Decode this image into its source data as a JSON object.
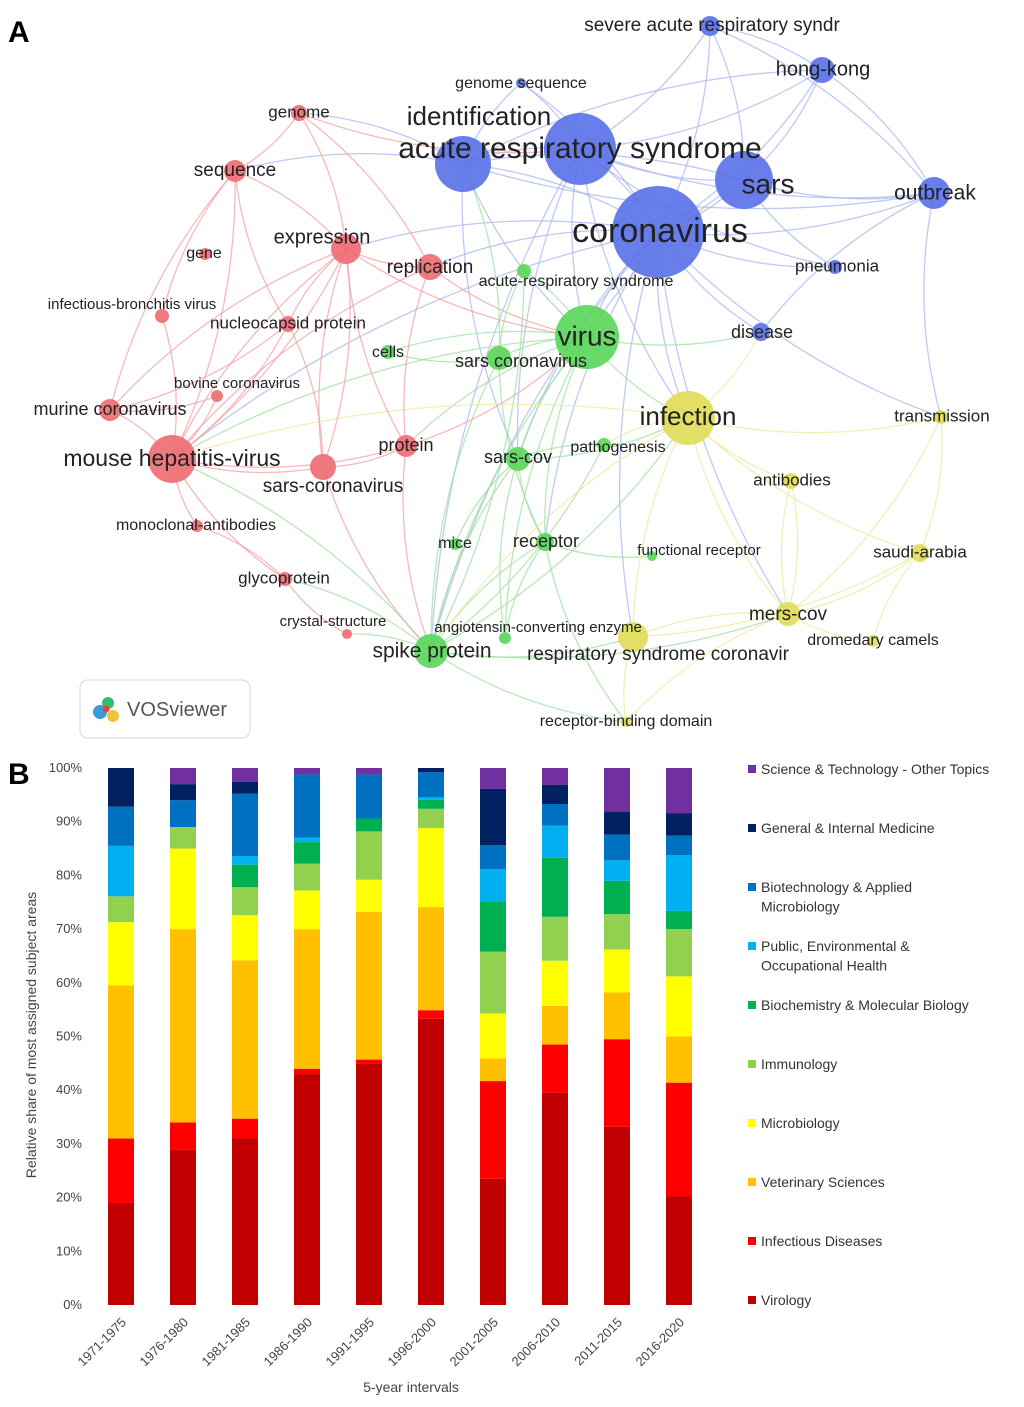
{
  "panel_a": {
    "letter": "A",
    "badge_text": "VOSviewer",
    "cluster_colors": {
      "red": "#ee6e73",
      "green": "#5cd65c",
      "blue": "#5b73e8",
      "yellow": "#e0dc5a"
    },
    "edge_colors": {
      "red": "#f2a1a5",
      "green": "#9fe09f",
      "blue": "#a9b7f0",
      "yellow": "#ecea9c"
    },
    "nodes": [
      {
        "id": "coronavirus",
        "label": "coronavirus",
        "cluster": "blue",
        "weight": 46,
        "fs": 34
      },
      {
        "id": "ars",
        "label": "acute respiratory syndrome",
        "cluster": "blue",
        "weight": 36,
        "fs": 30
      },
      {
        "id": "sars",
        "label": "sars",
        "cluster": "blue",
        "weight": 29,
        "fs": 28
      },
      {
        "id": "identification",
        "label": "identification",
        "cluster": "blue",
        "weight": 28,
        "fs": 26
      },
      {
        "id": "outbreak",
        "label": "outbreak",
        "cluster": "blue",
        "weight": 16,
        "fs": 21
      },
      {
        "id": "hongkong",
        "label": "hong-kong",
        "cluster": "blue",
        "weight": 13,
        "fs": 20
      },
      {
        "id": "sars_syndr",
        "label": "severe acute respiratory syndr",
        "cluster": "blue",
        "weight": 10,
        "fs": 19
      },
      {
        "id": "genome_seq",
        "label": "genome sequence",
        "cluster": "blue",
        "weight": 5,
        "fs": 16
      },
      {
        "id": "pneumonia",
        "label": "pneumonia",
        "cluster": "blue",
        "weight": 7,
        "fs": 17
      },
      {
        "id": "disease",
        "label": "disease",
        "cluster": "blue",
        "weight": 9,
        "fs": 18
      },
      {
        "id": "virus",
        "label": "virus",
        "cluster": "green",
        "weight": 32,
        "fs": 28
      },
      {
        "id": "sars_cov_v",
        "label": "sars coronavirus",
        "cluster": "green",
        "weight": 12,
        "fs": 18
      },
      {
        "id": "cells",
        "label": "cells",
        "cluster": "green",
        "weight": 7,
        "fs": 16
      },
      {
        "id": "acute_rs",
        "label": "acute-respiratory syndrome",
        "cluster": "green",
        "weight": 7,
        "fs": 16
      },
      {
        "id": "sars_cov",
        "label": "sars-cov",
        "cluster": "green",
        "weight": 12,
        "fs": 18
      },
      {
        "id": "pathogenesis",
        "label": "pathogenesis",
        "cluster": "green",
        "weight": 7,
        "fs": 16
      },
      {
        "id": "mice",
        "label": "mice",
        "cluster": "green",
        "weight": 6,
        "fs": 16
      },
      {
        "id": "receptor",
        "label": "receptor",
        "cluster": "green",
        "weight": 9,
        "fs": 18
      },
      {
        "id": "func_receptor",
        "label": "functional receptor",
        "cluster": "green",
        "weight": 5,
        "fs": 15
      },
      {
        "id": "spike",
        "label": "spike protein",
        "cluster": "green",
        "weight": 17,
        "fs": 21
      },
      {
        "id": "ace",
        "label": "angiotensin-converting enzyme",
        "cluster": "green",
        "weight": 6,
        "fs": 15
      },
      {
        "id": "expression",
        "label": "expression",
        "cluster": "red",
        "weight": 15,
        "fs": 20
      },
      {
        "id": "replication",
        "label": "replication",
        "cluster": "red",
        "weight": 13,
        "fs": 19
      },
      {
        "id": "genome",
        "label": "genome",
        "cluster": "red",
        "weight": 8,
        "fs": 17
      },
      {
        "id": "sequence",
        "label": "sequence",
        "cluster": "red",
        "weight": 11,
        "fs": 19
      },
      {
        "id": "gene",
        "label": "gene",
        "cluster": "red",
        "weight": 6,
        "fs": 16
      },
      {
        "id": "ibv",
        "label": "infectious-bronchitis virus",
        "cluster": "red",
        "weight": 7,
        "fs": 15
      },
      {
        "id": "nucleocapsid",
        "label": "nucleocapsid protein",
        "cluster": "red",
        "weight": 8,
        "fs": 17
      },
      {
        "id": "bovine",
        "label": "bovine coronavirus",
        "cluster": "red",
        "weight": 6,
        "fs": 15
      },
      {
        "id": "murine",
        "label": "murine coronavirus",
        "cluster": "red",
        "weight": 11,
        "fs": 18
      },
      {
        "id": "mhv",
        "label": "mouse hepatitis-virus",
        "cluster": "red",
        "weight": 24,
        "fs": 23
      },
      {
        "id": "protein",
        "label": "protein",
        "cluster": "red",
        "weight": 11,
        "fs": 18
      },
      {
        "id": "sars_corona",
        "label": "sars-coronavirus",
        "cluster": "red",
        "weight": 13,
        "fs": 19
      },
      {
        "id": "monoclonal",
        "label": "monoclonal-antibodies",
        "cluster": "red",
        "weight": 6,
        "fs": 16
      },
      {
        "id": "glycoprotein",
        "label": "glycoprotein",
        "cluster": "red",
        "weight": 7,
        "fs": 17
      },
      {
        "id": "crystal",
        "label": "crystal-structure",
        "cluster": "red",
        "weight": 5,
        "fs": 15
      },
      {
        "id": "infection",
        "label": "infection",
        "cluster": "yellow",
        "weight": 27,
        "fs": 26
      },
      {
        "id": "transmission",
        "label": "transmission",
        "cluster": "yellow",
        "weight": 7,
        "fs": 17
      },
      {
        "id": "antibodies",
        "label": "antibodies",
        "cluster": "yellow",
        "weight": 8,
        "fs": 17
      },
      {
        "id": "saudi",
        "label": "saudi-arabia",
        "cluster": "yellow",
        "weight": 9,
        "fs": 17
      },
      {
        "id": "mers",
        "label": "mers-cov",
        "cluster": "yellow",
        "weight": 12,
        "fs": 19
      },
      {
        "id": "camels",
        "label": "dromedary camels",
        "cluster": "yellow",
        "weight": 6,
        "fs": 16
      },
      {
        "id": "rsc",
        "label": "respiratory syndrome coronavir",
        "cluster": "yellow",
        "weight": 15,
        "fs": 19
      },
      {
        "id": "rbd",
        "label": "receptor-binding domain",
        "cluster": "yellow",
        "weight": 5,
        "fs": 16
      }
    ],
    "edges": [
      [
        "coronavirus",
        "ars"
      ],
      [
        "coronavirus",
        "sars"
      ],
      [
        "coronavirus",
        "identification"
      ],
      [
        "coronavirus",
        "outbreak"
      ],
      [
        "coronavirus",
        "hongkong"
      ],
      [
        "coronavirus",
        "sars_syndr"
      ],
      [
        "coronavirus",
        "pneumonia"
      ],
      [
        "coronavirus",
        "disease"
      ],
      [
        "coronavirus",
        "virus"
      ],
      [
        "coronavirus",
        "infection"
      ],
      [
        "coronavirus",
        "expression"
      ],
      [
        "coronavirus",
        "mhv"
      ],
      [
        "coronavirus",
        "spike"
      ],
      [
        "coronavirus",
        "replication"
      ],
      [
        "coronavirus",
        "sars_cov"
      ],
      [
        "coronavirus",
        "receptor"
      ],
      [
        "coronavirus",
        "transmission"
      ],
      [
        "coronavirus",
        "mers"
      ],
      [
        "coronavirus",
        "genome_seq"
      ],
      [
        "coronavirus",
        "rsc"
      ],
      [
        "ars",
        "sars"
      ],
      [
        "ars",
        "identification"
      ],
      [
        "ars",
        "outbreak"
      ],
      [
        "ars",
        "hongkong"
      ],
      [
        "ars",
        "sars_syndr"
      ],
      [
        "ars",
        "virus"
      ],
      [
        "ars",
        "sars_cov"
      ],
      [
        "ars",
        "pneumonia"
      ],
      [
        "ars",
        "spike"
      ],
      [
        "ars",
        "infection"
      ],
      [
        "ars",
        "genome_seq"
      ],
      [
        "sars",
        "outbreak"
      ],
      [
        "sars",
        "hongkong"
      ],
      [
        "sars",
        "sars_syndr"
      ],
      [
        "sars",
        "virus"
      ],
      [
        "sars",
        "pneumonia"
      ],
      [
        "sars",
        "identification"
      ],
      [
        "identification",
        "virus"
      ],
      [
        "identification",
        "sequence"
      ],
      [
        "identification",
        "genome"
      ],
      [
        "identification",
        "sars_cov"
      ],
      [
        "identification",
        "outbreak"
      ],
      [
        "outbreak",
        "hongkong"
      ],
      [
        "outbreak",
        "sars_syndr"
      ],
      [
        "outbreak",
        "transmission"
      ],
      [
        "outbreak",
        "disease"
      ],
      [
        "hongkong",
        "sars_syndr"
      ],
      [
        "hongkong",
        "identification"
      ],
      [
        "virus",
        "sars_cov_v"
      ],
      [
        "virus",
        "infection"
      ],
      [
        "virus",
        "spike"
      ],
      [
        "virus",
        "receptor"
      ],
      [
        "virus",
        "sars_cov"
      ],
      [
        "virus",
        "cells"
      ],
      [
        "virus",
        "acute_rs"
      ],
      [
        "virus",
        "mhv"
      ],
      [
        "virus",
        "protein"
      ],
      [
        "virus",
        "ace"
      ],
      [
        "virus",
        "disease"
      ],
      [
        "sars_cov_v",
        "spike"
      ],
      [
        "sars_cov_v",
        "receptor"
      ],
      [
        "sars_cov_v",
        "identification"
      ],
      [
        "sars_cov",
        "spike"
      ],
      [
        "sars_cov",
        "receptor"
      ],
      [
        "sars_cov",
        "ace"
      ],
      [
        "sars_cov",
        "mice"
      ],
      [
        "sars_cov",
        "infection"
      ],
      [
        "receptor",
        "spike"
      ],
      [
        "receptor",
        "ace"
      ],
      [
        "receptor",
        "func_receptor"
      ],
      [
        "receptor",
        "rbd"
      ],
      [
        "spike",
        "rsc"
      ],
      [
        "spike",
        "mers"
      ],
      [
        "spike",
        "rbd"
      ],
      [
        "spike",
        "mhv"
      ],
      [
        "spike",
        "glycoprotein"
      ],
      [
        "spike",
        "crystal"
      ],
      [
        "spike",
        "pathogenesis"
      ],
      [
        "spike",
        "acute_rs"
      ],
      [
        "spike",
        "infection"
      ],
      [
        "infection",
        "mers"
      ],
      [
        "infection",
        "antibodies"
      ],
      [
        "infection",
        "saudi"
      ],
      [
        "infection",
        "rsc"
      ],
      [
        "infection",
        "disease"
      ],
      [
        "infection",
        "pathogenesis"
      ],
      [
        "infection",
        "transmission"
      ],
      [
        "infection",
        "mhv"
      ],
      [
        "infection",
        "spike"
      ],
      [
        "mers",
        "saudi"
      ],
      [
        "mers",
        "camels"
      ],
      [
        "mers",
        "rsc"
      ],
      [
        "mers",
        "antibodies"
      ],
      [
        "mers",
        "transmission"
      ],
      [
        "mers",
        "rbd"
      ],
      [
        "saudi",
        "camels"
      ],
      [
        "saudi",
        "transmission"
      ],
      [
        "rsc",
        "rbd"
      ],
      [
        "rsc",
        "saudi"
      ],
      [
        "expression",
        "replication"
      ],
      [
        "expression",
        "mhv"
      ],
      [
        "expression",
        "sequence"
      ],
      [
        "expression",
        "genome"
      ],
      [
        "expression",
        "protein"
      ],
      [
        "expression",
        "nucleocapsid"
      ],
      [
        "expression",
        "murine"
      ],
      [
        "expression",
        "sars_corona"
      ],
      [
        "expression",
        "virus"
      ],
      [
        "replication",
        "mhv"
      ],
      [
        "replication",
        "protein"
      ],
      [
        "replication",
        "virus"
      ],
      [
        "replication",
        "genome"
      ],
      [
        "mhv",
        "murine"
      ],
      [
        "mhv",
        "sars_corona"
      ],
      [
        "mhv",
        "monoclonal"
      ],
      [
        "mhv",
        "glycoprotein"
      ],
      [
        "mhv",
        "bovine"
      ],
      [
        "mhv",
        "nucleocapsid"
      ],
      [
        "mhv",
        "sequence"
      ],
      [
        "mhv",
        "ibv"
      ],
      [
        "mhv",
        "protein"
      ],
      [
        "mhv",
        "expression"
      ],
      [
        "sequence",
        "genome"
      ],
      [
        "sequence",
        "ibv"
      ],
      [
        "sequence",
        "murine"
      ],
      [
        "sequence",
        "nucleocapsid"
      ],
      [
        "sars_corona",
        "protein"
      ],
      [
        "sars_corona",
        "nucleocapsid"
      ],
      [
        "sars_corona",
        "spike"
      ],
      [
        "sars_corona",
        "expression"
      ],
      [
        "glycoprotein",
        "crystal"
      ],
      [
        "glycoprotein",
        "monoclonal"
      ],
      [
        "murine",
        "bovine"
      ],
      [
        "murine",
        "nucleocapsid"
      ],
      [
        "protein",
        "spike"
      ],
      [
        "protein",
        "virus"
      ],
      [
        "cells",
        "sars_cov_v"
      ],
      [
        "acute_rs",
        "sars_cov_v"
      ],
      [
        "pathogenesis",
        "sars_cov"
      ],
      [
        "genome",
        "ars"
      ],
      [
        "genome_seq",
        "identification"
      ],
      [
        "antibodies",
        "mers"
      ]
    ]
  },
  "chart_data": {
    "type": "bar",
    "stacked": true,
    "panel_letter": "B",
    "xlabel": "5-year intervals",
    "ylabel": "Relative share of most assigned subject areas",
    "ylim": [
      0,
      100
    ],
    "y_ticks": [
      "0%",
      "10%",
      "20%",
      "30%",
      "40%",
      "50%",
      "60%",
      "70%",
      "80%",
      "90%",
      "100%"
    ],
    "categories": [
      "1971-1975",
      "1976-1980",
      "1981-1985",
      "1986-1990",
      "1991-1995",
      "1996-2000",
      "2001-2005",
      "2006-2010",
      "2011-2015",
      "2016-2020"
    ],
    "legend_position": "right",
    "series": [
      {
        "name": "Virology",
        "color": "#c00000",
        "values": [
          19,
          29,
          31,
          43,
          45,
          53.3,
          23.5,
          39.5,
          33.2,
          20.2
        ]
      },
      {
        "name": "Infectious Diseases",
        "color": "#ff0000",
        "values": [
          12,
          5,
          3.7,
          1,
          0.7,
          1.6,
          18.2,
          9,
          16.3,
          21.2
        ]
      },
      {
        "name": "Veterinary Sciences",
        "color": "#ffc000",
        "values": [
          28.5,
          36,
          29.5,
          26,
          27.5,
          19.2,
          4.2,
          7.2,
          8.7,
          8.6
        ]
      },
      {
        "name": "Microbiology",
        "color": "#ffff00",
        "values": [
          11.8,
          15,
          8.4,
          7.2,
          6,
          14.7,
          8.4,
          8.4,
          8,
          11.2
        ]
      },
      {
        "name": "Immunology",
        "color": "#92d050",
        "values": [
          4.8,
          4,
          5.2,
          5,
          9,
          3.6,
          11.5,
          8.2,
          6.6,
          8.8
        ]
      },
      {
        "name": "Biochemistry & Molecular Biology",
        "color": "#00b050",
        "values": [
          0,
          0,
          4.2,
          4,
          2.4,
          1.7,
          9.4,
          11,
          6.2,
          3.4
        ]
      },
      {
        "name": "Public, Environmental & Occupational Health",
        "color": "#00b0f0",
        "values": [
          9.4,
          0,
          1.6,
          0.8,
          0,
          0.5,
          6,
          6,
          3.8,
          10.4
        ]
      },
      {
        "name": "Biotechnology & Applied Microbiology",
        "color": "#0070c0",
        "values": [
          7.3,
          5,
          11.6,
          11.8,
          8.2,
          4.6,
          4.4,
          4,
          4.8,
          3.6
        ]
      },
      {
        "name": "General & Internal Medicine",
        "color": "#002060",
        "values": [
          7.2,
          3,
          2.2,
          0,
          0,
          0.8,
          10.5,
          3.6,
          4.2,
          4.2
        ]
      },
      {
        "name": "Science & Technology - Other Topics",
        "color": "#7030a0",
        "values": [
          0,
          3,
          2.6,
          1.2,
          1.2,
          0,
          3.9,
          3.1,
          8.2,
          8.4
        ]
      }
    ],
    "legend_labels": [
      [
        "Science & Technology - Other Topics"
      ],
      [
        "General & Internal Medicine"
      ],
      [
        "Biotechnology & Applied",
        "Microbiology"
      ],
      [
        "Public, Environmental &",
        "Occupational Health"
      ],
      [
        "Biochemistry & Molecular Biology"
      ],
      [
        "Immunology"
      ],
      [
        "Microbiology"
      ],
      [
        "Veterinary Sciences"
      ],
      [
        "Infectious Diseases"
      ],
      [
        "Virology"
      ]
    ]
  }
}
